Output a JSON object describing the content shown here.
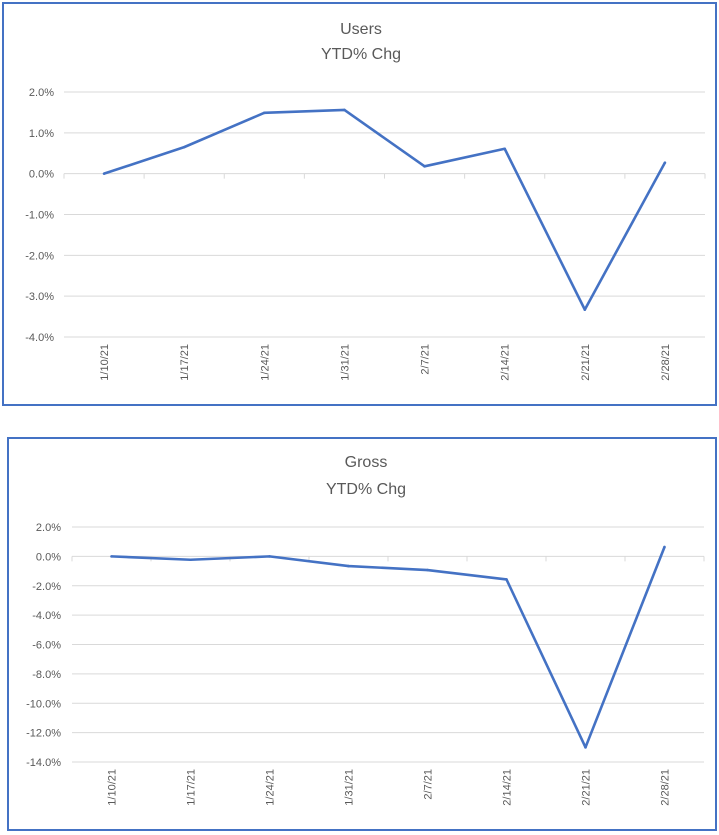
{
  "chart_data": [
    {
      "type": "line",
      "title": [
        "Users",
        "YTD% Chg"
      ],
      "categories": [
        "1/10/21",
        "1/17/21",
        "1/24/21",
        "1/31/21",
        "2/7/21",
        "2/14/21",
        "2/21/21",
        "2/28/21"
      ],
      "series": [
        {
          "name": "Users YTD% Chg",
          "values": [
            0.0,
            0.65,
            1.49,
            1.56,
            0.18,
            0.61,
            -3.33,
            0.27
          ]
        }
      ],
      "yticks": [
        "2.0%",
        "1.0%",
        "0.0%",
        "-1.0%",
        "-2.0%",
        "-3.0%",
        "-4.0%"
      ],
      "ylim": [
        -4,
        2
      ],
      "ystep": 1,
      "grid": true,
      "line_color": "#4472c4",
      "xlabel": "",
      "ylabel": ""
    },
    {
      "type": "line",
      "title": [
        "Gross",
        "YTD% Chg"
      ],
      "categories": [
        "1/10/21",
        "1/17/21",
        "1/24/21",
        "1/31/21",
        "2/7/21",
        "2/14/21",
        "2/21/21",
        "2/28/21"
      ],
      "series": [
        {
          "name": "Gross YTD% Chg",
          "values": [
            0.0,
            -0.23,
            0.0,
            -0.66,
            -0.93,
            -1.57,
            -13.0,
            0.64
          ]
        }
      ],
      "yticks": [
        "2.0%",
        "0.0%",
        "-2.0%",
        "-4.0%",
        "-6.0%",
        "-8.0%",
        "-10.0%",
        "-12.0%",
        "-14.0%"
      ],
      "ylim": [
        -14,
        2
      ],
      "ystep": 2,
      "grid": true,
      "line_color": "#4472c4",
      "xlabel": "",
      "ylabel": ""
    }
  ]
}
